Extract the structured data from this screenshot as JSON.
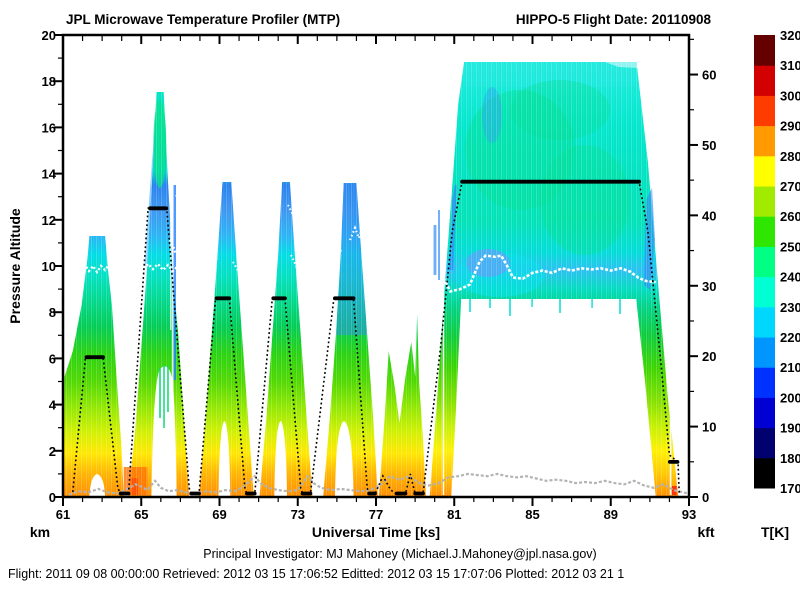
{
  "header": {
    "title_left": "JPL Microwave Temperature Profiler (MTP)",
    "title_right": "HIPPO-5  Flight Date: 20110908"
  },
  "axes": {
    "x": {
      "label": "Universal Time [ks]",
      "range_ks": [
        61,
        93
      ],
      "tick_labels": [
        "61",
        "65",
        "69",
        "73",
        "77",
        "81",
        "85",
        "89",
        "93"
      ],
      "minor_tick_interval_ks": 1
    },
    "y_left": {
      "label": "Pressure Altitude",
      "unit": "km",
      "range_km": [
        0,
        20
      ],
      "tick_labels": [
        "0",
        "2",
        "4",
        "6",
        "8",
        "10",
        "12",
        "14",
        "16",
        "18",
        "20"
      ]
    },
    "y_right": {
      "unit": "kft",
      "range_kft": [
        0,
        65.6
      ],
      "tick_labels": [
        "0",
        "10",
        "20",
        "30",
        "40",
        "50",
        "60"
      ]
    },
    "colorbar": {
      "label": "T[K]",
      "range_k": [
        170,
        320
      ],
      "tick_labels": [
        "170",
        "180",
        "190",
        "200",
        "210",
        "220",
        "230",
        "240",
        "250",
        "260",
        "270",
        "280",
        "290",
        "300",
        "310",
        "320"
      ],
      "colors_bottom_to_top": [
        "#000000",
        "#00006e",
        "#0000d2",
        "#0032ff",
        "#0096ff",
        "#00d7ff",
        "#00ffd2",
        "#00ff82",
        "#2ee600",
        "#a0eb00",
        "#ffff00",
        "#ff9b00",
        "#ff3c00",
        "#d20000",
        "#640000"
      ]
    }
  },
  "footer": {
    "line1": "Principal Investigator: MJ Mahoney (Michael.J.Mahoney@jpl.nasa.gov)",
    "line2": "Flight: 2011 09 08 00:00:00   Retrieved: 2012 03 15 17:06:52   Editted: 2012 03 15 17:07:06  Plotted: 2012 03 21 1"
  },
  "chart_data": {
    "type": "heatmap",
    "title": "JPL Microwave Temperature Profiler (MTP)",
    "subtitle": "HIPPO-5  Flight Date: 20110908",
    "xlabel": "Universal Time [ks]",
    "ylabel": "Pressure Altitude",
    "x_range_ks": [
      61,
      93
    ],
    "y_range_km": [
      0,
      20
    ],
    "y_right_range_kft": [
      0,
      65.6
    ],
    "colorbar_label": "T[K]",
    "temperature_scale_k": {
      "min": 170,
      "max": 320,
      "step": 10
    },
    "flight_track_ks_km": [
      [
        61.5,
        0.2
      ],
      [
        62.2,
        6.05
      ],
      [
        63.05,
        6.05
      ],
      [
        63.9,
        0.1
      ],
      [
        64.35,
        0.1
      ],
      [
        65.35,
        12.5
      ],
      [
        66.3,
        12.5
      ],
      [
        67.5,
        0.1
      ],
      [
        67.95,
        0.1
      ],
      [
        68.8,
        8.6
      ],
      [
        69.5,
        8.6
      ],
      [
        70.35,
        0.1
      ],
      [
        70.75,
        0.1
      ],
      [
        71.7,
        8.6
      ],
      [
        72.35,
        8.6
      ],
      [
        73.2,
        0.1
      ],
      [
        73.6,
        0.1
      ],
      [
        74.85,
        8.6
      ],
      [
        75.85,
        8.6
      ],
      [
        76.6,
        0.1
      ],
      [
        77.35,
        0.9
      ],
      [
        78.05,
        0.1
      ],
      [
        78.5,
        0.1
      ],
      [
        78.75,
        1.0
      ],
      [
        79.0,
        0.1
      ],
      [
        79.4,
        0.1
      ],
      [
        80.3,
        6.5
      ],
      [
        81.4,
        13.65
      ],
      [
        90.45,
        13.65
      ],
      [
        91.6,
        5.5
      ],
      [
        92.1,
        1.5
      ],
      [
        92.5,
        0.1
      ]
    ],
    "level_flight_segments_km": [
      {
        "start_ks": 62.2,
        "end_ks": 63.05,
        "alt_km": 6.05
      },
      {
        "start_ks": 65.35,
        "end_ks": 66.3,
        "alt_km": 12.5
      },
      {
        "start_ks": 68.8,
        "end_ks": 69.5,
        "alt_km": 8.6
      },
      {
        "start_ks": 71.7,
        "end_ks": 72.35,
        "alt_km": 8.6
      },
      {
        "start_ks": 74.85,
        "end_ks": 75.85,
        "alt_km": 8.6
      },
      {
        "start_ks": 81.4,
        "end_ks": 90.45,
        "alt_km": 13.65
      }
    ],
    "curtain_envelope_peaks": [
      {
        "peak_ks": 62.75,
        "top_km": 11.3
      },
      {
        "peak_ks": 65.95,
        "top_km": 17.6
      },
      {
        "peak_ks": 69.35,
        "top_km": 13.7
      },
      {
        "peak_ks": 72.4,
        "top_km": 13.7
      },
      {
        "peak_ks": 75.65,
        "top_km": 13.6
      },
      {
        "plateau_start_ks": 81.4,
        "plateau_end_ks": 90.3,
        "top_km": 18.9
      }
    ],
    "tropopause_white_line_ks_km": [
      [
        62,
        9.9
      ],
      [
        65,
        10.1
      ],
      [
        67,
        10.3
      ],
      [
        80,
        9.3
      ],
      [
        82.5,
        10.4
      ],
      [
        84,
        9.5
      ],
      [
        86,
        9.8
      ],
      [
        88,
        9.9
      ],
      [
        90,
        9.7
      ],
      [
        91.3,
        9.3
      ]
    ],
    "surface_gray_line_ks_km": [
      [
        61.3,
        0.15
      ],
      [
        64.7,
        0.55
      ],
      [
        67.8,
        0.15
      ],
      [
        70.8,
        0.9
      ],
      [
        73.5,
        0.9
      ],
      [
        76.2,
        0.25
      ],
      [
        78.5,
        0.85
      ],
      [
        81.7,
        1.0
      ],
      [
        85,
        0.85
      ],
      [
        88,
        0.65
      ],
      [
        90.7,
        0.5
      ],
      [
        92.9,
        0.15
      ]
    ]
  }
}
